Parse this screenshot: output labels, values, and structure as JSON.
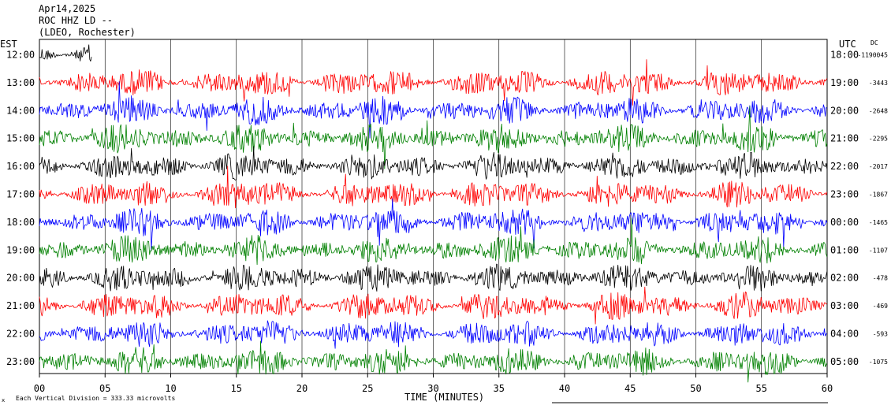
{
  "chart_data": {
    "type": "line",
    "header": {
      "date": "Apr14,2025",
      "station": "ROC HHZ LD --",
      "network": "(LDEO, Rochester)"
    },
    "left_timezone": "EST",
    "right_timezone": "UTC",
    "dc_header": "DC",
    "xlabel": "TIME (MINUTES)",
    "xlim": [
      0,
      60
    ],
    "x_ticks": [
      "00",
      "05",
      "10",
      "15",
      "20",
      "25",
      "30",
      "35",
      "40",
      "45",
      "50",
      "55",
      "60"
    ],
    "footnote": "Each Vertical Division = 333.33 microvolts",
    "corner_mark": "x",
    "trace_colors": [
      "#000000",
      "#ff0000",
      "#0000ff",
      "#008000"
    ],
    "rows": [
      {
        "est": "12:00",
        "utc": "18:00",
        "dc": "-1190045",
        "amp": 0.55,
        "end_min": 4
      },
      {
        "est": "13:00",
        "utc": "19:00",
        "dc": "-3443",
        "amp": 0.55,
        "end_min": 60
      },
      {
        "est": "14:00",
        "utc": "20:00",
        "dc": "-2648",
        "amp": 0.55,
        "end_min": 60
      },
      {
        "est": "15:00",
        "utc": "21:00",
        "dc": "-2295",
        "amp": 0.55,
        "end_min": 60
      },
      {
        "est": "16:00",
        "utc": "22:00",
        "dc": "-2017",
        "amp": 0.55,
        "end_min": 60
      },
      {
        "est": "17:00",
        "utc": "23:00",
        "dc": "-1867",
        "amp": 0.55,
        "end_min": 60
      },
      {
        "est": "18:00",
        "utc": "00:00",
        "dc": "-1465",
        "amp": 0.55,
        "end_min": 60
      },
      {
        "est": "19:00",
        "utc": "01:00",
        "dc": "-1107",
        "amp": 0.55,
        "end_min": 60
      },
      {
        "est": "20:00",
        "utc": "02:00",
        "dc": "-478",
        "amp": 0.55,
        "end_min": 60
      },
      {
        "est": "21:00",
        "utc": "03:00",
        "dc": "-469",
        "amp": 0.55,
        "end_min": 60
      },
      {
        "est": "22:00",
        "utc": "04:00",
        "dc": "-593",
        "amp": 0.55,
        "end_min": 60
      },
      {
        "est": "23:00",
        "utc": "05:00",
        "dc": "-1075",
        "amp": 0.55,
        "end_min": 60
      }
    ]
  }
}
